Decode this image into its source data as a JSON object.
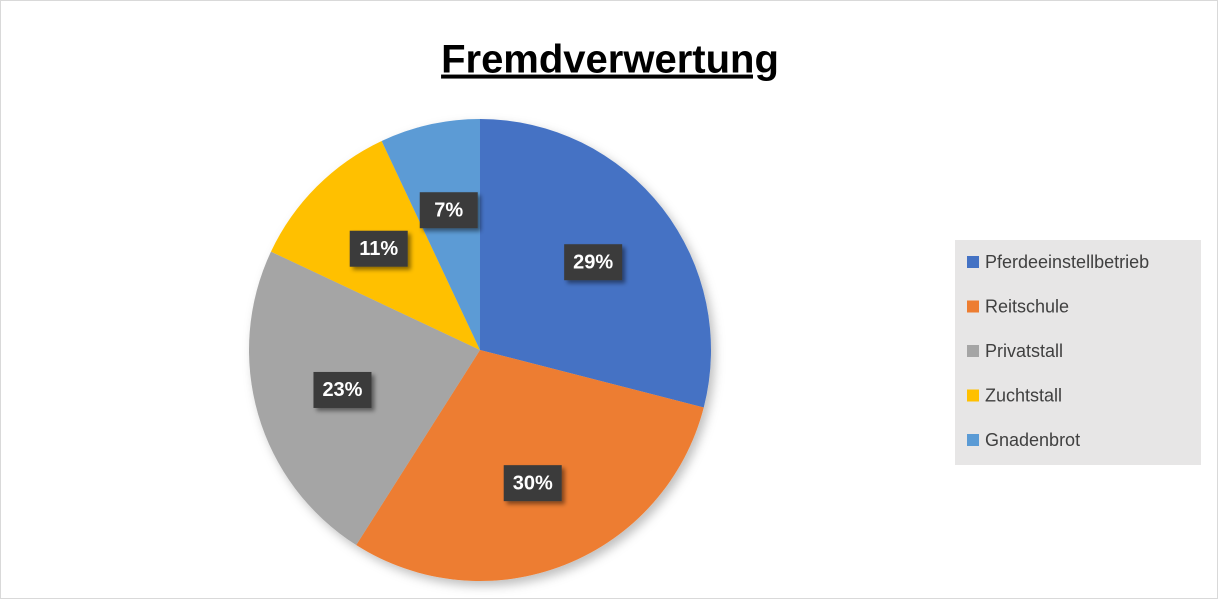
{
  "chart_data": {
    "type": "pie",
    "title": "Fremdverwertung",
    "categories": [
      "Pferdeeinstellbetrieb",
      "Reitschule",
      "Privatstall",
      "Zuchtstall",
      "Gnadenbrot"
    ],
    "values": [
      29,
      30,
      23,
      11,
      7
    ],
    "value_labels": [
      "29%",
      "30%",
      "23%",
      "11%",
      "7%"
    ],
    "colors": [
      "#4472c4",
      "#ed7d31",
      "#a5a5a5",
      "#ffc000",
      "#5b9bd5"
    ],
    "legend": "right"
  }
}
